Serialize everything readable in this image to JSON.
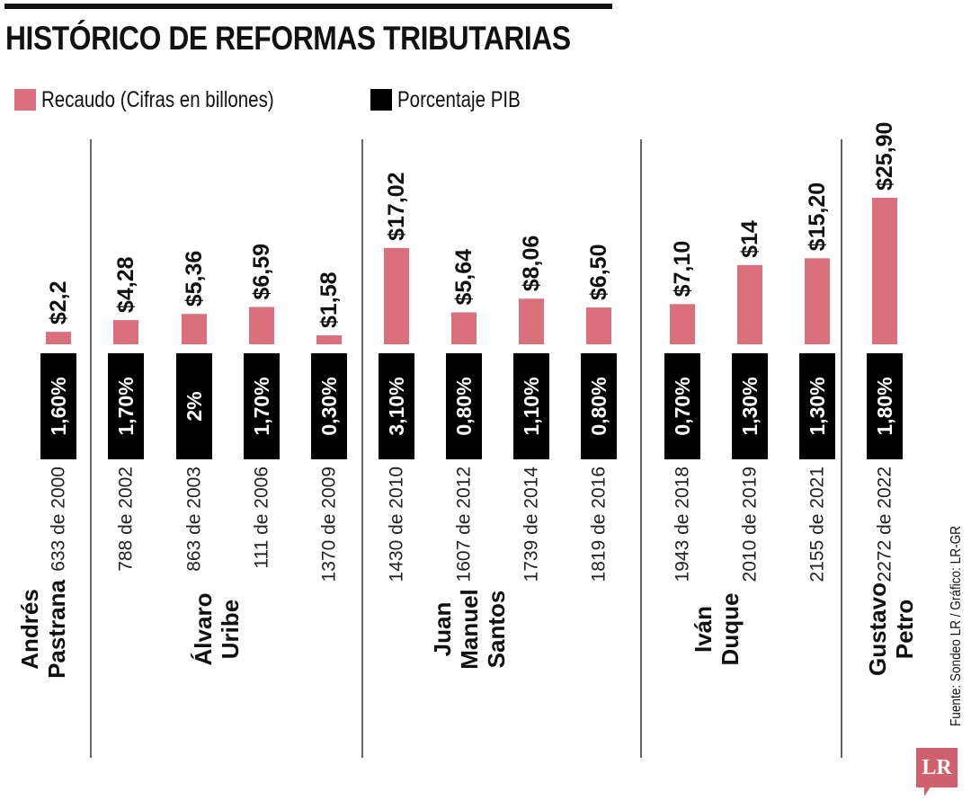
{
  "title": "HISTÓRICO DE REFORMAS TRIBUTARIAS",
  "legend": [
    {
      "label": "Recaudo (Cifras en billones)",
      "color": "#d9707c"
    },
    {
      "label": "Porcentaje PIB",
      "color": "#000000"
    }
  ],
  "source": "Fuente: Sondeo LR / Gráfico: LR-GR",
  "logo": "LR",
  "colors": {
    "bar": "#d9707c",
    "label_box": "#000000",
    "separator": "#333333"
  },
  "chart_data": {
    "type": "bar",
    "title": "HISTÓRICO DE REFORMAS TRIBUTARIAS",
    "categories": [
      "633 de 2000",
      "788 de 2002",
      "863 de 2003",
      "111 de 2006",
      "1370 de 2009",
      "1430 de 2010",
      "1607 de 2012",
      "1739 de 2014",
      "1819 de 2016",
      "1943 de 2018",
      "2010 de 2019",
      "2155 de 2021",
      "2272 de 2022"
    ],
    "series": [
      {
        "name": "Recaudo (Cifras en billones)",
        "values": [
          2.2,
          4.28,
          5.36,
          6.59,
          1.58,
          17.02,
          5.64,
          8.06,
          6.5,
          7.1,
          14,
          15.2,
          25.9
        ],
        "labels": [
          "$2,2",
          "$4,28",
          "$5,36",
          "$6,59",
          "$1,58",
          "$17,02",
          "$5,64",
          "$8,06",
          "$6,50",
          "$7,10",
          "$14",
          "$15,20",
          "$25,90"
        ]
      },
      {
        "name": "Porcentaje PIB",
        "values": [
          1.6,
          1.7,
          2,
          1.7,
          0.3,
          3.1,
          0.8,
          1.1,
          0.8,
          0.7,
          1.3,
          1.3,
          1.8
        ],
        "labels": [
          "1,60%",
          "1,70%",
          "2%",
          "1,70%",
          "0,30%",
          "3,10%",
          "0,80%",
          "1,10%",
          "0,80%",
          "0,70%",
          "1,30%",
          "1,30%",
          "1,80%"
        ]
      }
    ],
    "groups": [
      {
        "name": [
          "Andrés",
          "Pastrana"
        ],
        "from": 0,
        "to": 0
      },
      {
        "name": [
          "Álvaro",
          "Uribe"
        ],
        "from": 1,
        "to": 4
      },
      {
        "name": [
          "Juan",
          "Manuel",
          "Santos"
        ],
        "from": 5,
        "to": 8
      },
      {
        "name": [
          "Iván",
          "Duque"
        ],
        "from": 9,
        "to": 11
      },
      {
        "name": [
          "Gustavo",
          "Petro"
        ],
        "from": 12,
        "to": 12
      }
    ],
    "ylim": [
      0,
      25.9
    ]
  }
}
